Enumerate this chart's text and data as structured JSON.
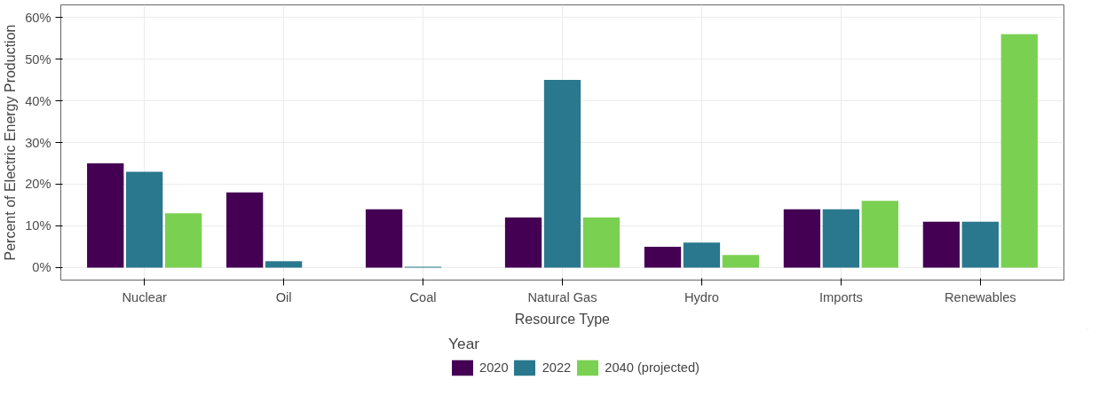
{
  "chart_data": {
    "type": "bar",
    "xlabel": "Resource Type",
    "ylabel": "Percent of Electric Energy Production",
    "legend_title": "Year",
    "categories": [
      "Nuclear",
      "Oil",
      "Coal",
      "Natural Gas",
      "Hydro",
      "Imports",
      "Renewables"
    ],
    "series": [
      {
        "name": "2020",
        "color": "#440154",
        "values": [
          25,
          18,
          14,
          12,
          5,
          14,
          11
        ]
      },
      {
        "name": "2022",
        "color": "#2a788e",
        "values": [
          23,
          1.5,
          0.2,
          45,
          6,
          14,
          11
        ]
      },
      {
        "name": "2040 (projected)",
        "color": "#7ad151",
        "values": [
          13,
          null,
          null,
          12,
          3,
          16,
          56
        ]
      }
    ],
    "ylim": [
      -3,
      63
    ],
    "yticks": [
      {
        "value": 0,
        "label": "0%"
      },
      {
        "value": 10,
        "label": "10%"
      },
      {
        "value": 20,
        "label": "20%"
      },
      {
        "value": 30,
        "label": "30%"
      },
      {
        "value": 40,
        "label": "40%"
      },
      {
        "value": 50,
        "label": "50%"
      },
      {
        "value": 60,
        "label": "60%"
      }
    ],
    "grid": true,
    "legend": "bottom"
  }
}
